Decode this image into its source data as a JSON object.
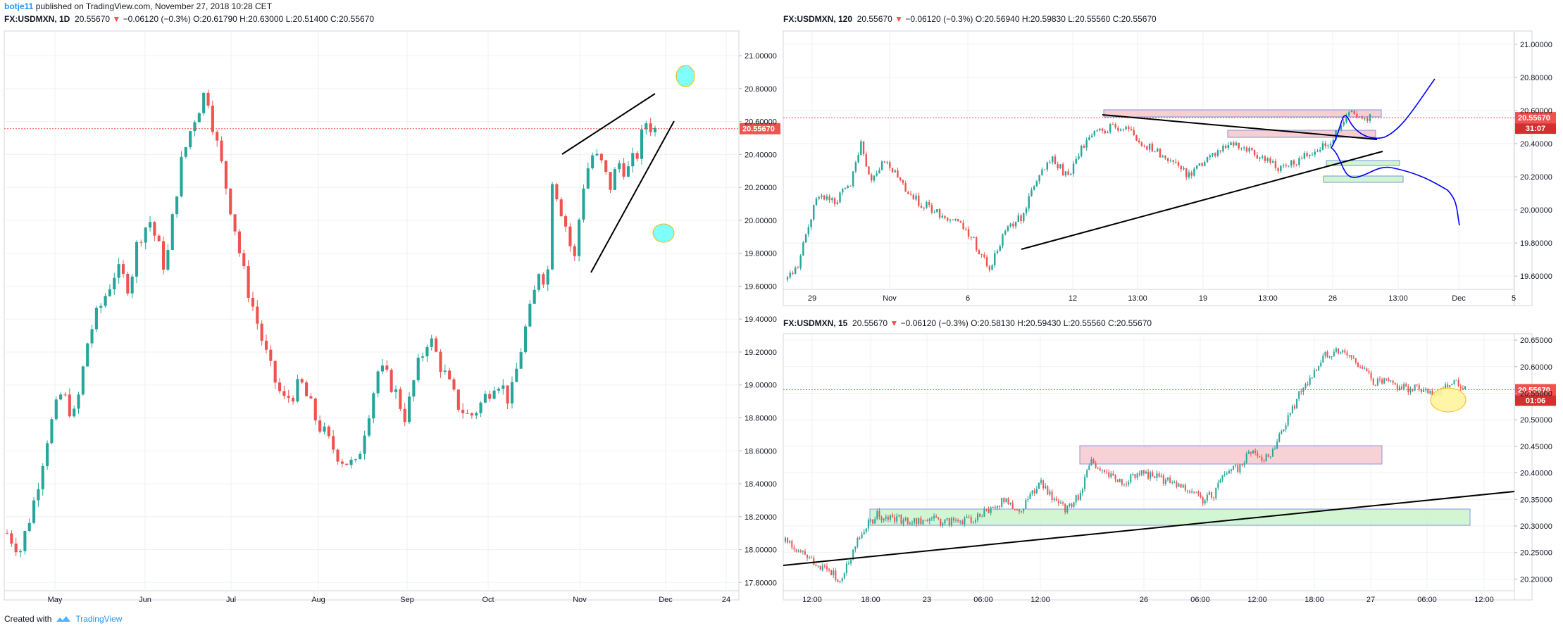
{
  "header": {
    "user": "botje11",
    "text": "published on TradingView.com, November 27, 2018 10:28 CET"
  },
  "footer": {
    "created_with": "Created with",
    "brand": "TradingView"
  },
  "colors": {
    "up": "#26a69a",
    "down": "#ef5350",
    "grid": "#eef1f5",
    "axis_text": "#131722",
    "price_line": "#ef5350",
    "pink_zone": "#f7c6cc",
    "green_zone": "#c8f5c8",
    "blue_path": "#0000ff",
    "cyan_ellipse": "#80ffff",
    "yellow_ellipse": "#fff59d"
  },
  "charts": [
    {
      "id": "daily",
      "symbol": "FX:USDMXN, 1D",
      "last": "20.55670",
      "change": "−0.06120 (−0.3%)",
      "o_label": "O:",
      "o": "20.61790",
      "h_label": "H:",
      "h": "20.63000",
      "l_label": "L:",
      "l": "20.51400",
      "c_label": "C:",
      "c": "20.55670",
      "price_tag": "20.55670",
      "y_ticks": [
        "21.00000",
        "20.80000",
        "20.60000",
        "20.40000",
        "20.20000",
        "20.00000",
        "19.80000",
        "19.60000",
        "19.40000",
        "19.20000",
        "19.00000",
        "18.80000",
        "18.60000",
        "18.40000",
        "18.20000",
        "18.00000",
        "17.80000"
      ],
      "x_ticks": [
        "May",
        "Jun",
        "Jul",
        "Aug",
        "Sep",
        "Oct",
        "Nov",
        "Dec",
        "24"
      ]
    },
    {
      "id": "h2",
      "symbol": "FX:USDMXN, 120",
      "last": "20.55670",
      "change": "−0.06120 (−0.3%)",
      "o_label": "O:",
      "o": "20.56940",
      "h_label": "H:",
      "h": "20.59830",
      "l_label": "L:",
      "l": "20.55560",
      "c_label": "C:",
      "c": "20.55670",
      "price_tag": "20.55670",
      "countdown": "31:07",
      "y_ticks": [
        "21.00000",
        "20.80000",
        "20.60000",
        "20.40000",
        "20.20000",
        "20.00000",
        "19.80000",
        "19.60000"
      ],
      "x_ticks": [
        "29",
        "Nov",
        "6",
        "12",
        "13:00",
        "19",
        "13:00",
        "26",
        "13:00",
        "Dec",
        "5"
      ]
    },
    {
      "id": "m15",
      "symbol": "FX:USDMXN, 15",
      "last": "20.55670",
      "change": "−0.06120 (−0.3%)",
      "o_label": "O:",
      "o": "20.58130",
      "h_label": "H:",
      "h": "20.59430",
      "l_label": "L:",
      "l": "20.55560",
      "c_label": "C:",
      "c": "20.55670",
      "price_tag": "20.55670",
      "countdown": "01:06",
      "y_ticks": [
        "20.65000",
        "20.60000",
        "20.55000",
        "20.50000",
        "20.45000",
        "20.40000",
        "20.35000",
        "20.30000",
        "20.25000",
        "20.20000"
      ],
      "x_ticks": [
        "12:00",
        "18:00",
        "23",
        "06:00",
        "12:00",
        "26",
        "06:00",
        "12:00",
        "18:00",
        "27",
        "06:00",
        "12:00"
      ]
    }
  ],
  "chart_data": [
    {
      "type": "candlestick",
      "title": "FX:USDMXN, 1D",
      "ylim": [
        17.75,
        21.15
      ],
      "x_categories": [
        "May",
        "Jun",
        "Jul",
        "Aug",
        "Sep",
        "Oct",
        "Nov",
        "Dec",
        "24"
      ],
      "series": [
        {
          "name": "FX:USDMXN",
          "close_path": [
            [
              0,
              18.1
            ],
            [
              6,
              18.0
            ],
            [
              12,
              18.3
            ],
            [
              18,
              18.7
            ],
            [
              24,
              18.95
            ],
            [
              30,
              18.8
            ],
            [
              36,
              19.3
            ],
            [
              42,
              19.5
            ],
            [
              48,
              19.7
            ],
            [
              54,
              19.6
            ],
            [
              58,
              19.9
            ],
            [
              63,
              20.0
            ],
            [
              70,
              19.7
            ],
            [
              76,
              20.3
            ],
            [
              82,
              20.6
            ],
            [
              88,
              20.8
            ],
            [
              92,
              20.5
            ],
            [
              96,
              20.25
            ],
            [
              100,
              20.0
            ],
            [
              104,
              19.7
            ],
            [
              110,
              19.4
            ],
            [
              116,
              19.1
            ],
            [
              122,
              18.9
            ],
            [
              130,
              19.0
            ],
            [
              136,
              18.8
            ],
            [
              142,
              18.65
            ],
            [
              148,
              18.55
            ],
            [
              154,
              18.5
            ],
            [
              158,
              18.75
            ],
            [
              164,
              19.1
            ],
            [
              170,
              19.0
            ],
            [
              176,
              18.8
            ],
            [
              180,
              19.05
            ],
            [
              186,
              19.3
            ],
            [
              192,
              19.1
            ],
            [
              198,
              18.9
            ],
            [
              204,
              18.8
            ],
            [
              210,
              18.9
            ],
            [
              216,
              19.05
            ],
            [
              222,
              18.9
            ],
            [
              228,
              19.3
            ],
            [
              232,
              19.5
            ],
            [
              236,
              19.8
            ],
            [
              238,
              19.4
            ],
            [
              240,
              20.3
            ],
            [
              244,
              20.1
            ],
            [
              248,
              19.9
            ],
            [
              250,
              19.7
            ],
            [
              254,
              20.2
            ],
            [
              258,
              20.4
            ],
            [
              262,
              20.35
            ],
            [
              266,
              20.2
            ],
            [
              270,
              20.35
            ],
            [
              274,
              20.3
            ],
            [
              278,
              20.4
            ],
            [
              282,
              20.6
            ],
            [
              286,
              20.55
            ]
          ]
        }
      ]
    },
    {
      "type": "candlestick",
      "title": "FX:USDMXN, 120",
      "ylim": [
        19.55,
        21.05
      ],
      "x_categories": [
        "29",
        "Nov",
        "6",
        "12",
        "13:00",
        "19",
        "13:00",
        "26",
        "13:00",
        "Dec",
        "5"
      ],
      "series": [
        {
          "name": "FX:USDMXN",
          "close_path": [
            [
              0,
              19.58
            ],
            [
              4,
              19.65
            ],
            [
              8,
              19.9
            ],
            [
              12,
              20.1
            ],
            [
              18,
              20.05
            ],
            [
              24,
              20.15
            ],
            [
              28,
              20.4
            ],
            [
              32,
              20.2
            ],
            [
              38,
              20.3
            ],
            [
              44,
              20.15
            ],
            [
              50,
              20.05
            ],
            [
              56,
              20.0
            ],
            [
              62,
              19.95
            ],
            [
              68,
              19.9
            ],
            [
              74,
              19.75
            ],
            [
              78,
              19.65
            ],
            [
              84,
              19.9
            ],
            [
              90,
              19.95
            ],
            [
              96,
              20.2
            ],
            [
              102,
              20.3
            ],
            [
              108,
              20.2
            ],
            [
              112,
              20.35
            ],
            [
              118,
              20.45
            ],
            [
              124,
              20.5
            ],
            [
              130,
              20.5
            ],
            [
              136,
              20.4
            ],
            [
              142,
              20.35
            ],
            [
              148,
              20.3
            ],
            [
              154,
              20.2
            ],
            [
              160,
              20.3
            ],
            [
              166,
              20.35
            ],
            [
              172,
              20.4
            ],
            [
              178,
              20.35
            ],
            [
              184,
              20.3
            ],
            [
              190,
              20.25
            ],
            [
              196,
              20.3
            ],
            [
              202,
              20.35
            ],
            [
              208,
              20.4
            ],
            [
              212,
              20.5
            ],
            [
              216,
              20.58
            ],
            [
              220,
              20.57
            ],
            [
              224,
              20.56
            ]
          ]
        }
      ]
    },
    {
      "type": "candlestick",
      "title": "FX:USDMXN, 15",
      "ylim": [
        20.18,
        20.66
      ],
      "x_categories": [
        "12:00",
        "18:00",
        "23",
        "06:00",
        "12:00",
        "26",
        "06:00",
        "12:00",
        "18:00",
        "27",
        "06:00",
        "12:00"
      ],
      "series": [
        {
          "name": "FX:USDMXN",
          "close_path": [
            [
              0,
              20.27
            ],
            [
              6,
              20.25
            ],
            [
              12,
              20.22
            ],
            [
              18,
              20.2
            ],
            [
              22,
              20.25
            ],
            [
              26,
              20.3
            ],
            [
              30,
              20.32
            ],
            [
              40,
              20.31
            ],
            [
              50,
              20.31
            ],
            [
              60,
              20.31
            ],
            [
              66,
              20.33
            ],
            [
              72,
              20.35
            ],
            [
              76,
              20.32
            ],
            [
              80,
              20.36
            ],
            [
              84,
              20.38
            ],
            [
              88,
              20.35
            ],
            [
              92,
              20.33
            ],
            [
              96,
              20.36
            ],
            [
              100,
              20.42
            ],
            [
              104,
              20.4
            ],
            [
              110,
              20.38
            ],
            [
              116,
              20.4
            ],
            [
              122,
              20.39
            ],
            [
              128,
              20.38
            ],
            [
              132,
              20.37
            ],
            [
              136,
              20.35
            ],
            [
              140,
              20.36
            ],
            [
              144,
              20.4
            ],
            [
              148,
              20.41
            ],
            [
              152,
              20.44
            ],
            [
              156,
              20.42
            ],
            [
              160,
              20.45
            ],
            [
              164,
              20.5
            ],
            [
              168,
              20.55
            ],
            [
              172,
              20.58
            ],
            [
              176,
              20.62
            ],
            [
              180,
              20.63
            ],
            [
              184,
              20.62
            ],
            [
              188,
              20.6
            ],
            [
              192,
              20.57
            ],
            [
              196,
              20.57
            ],
            [
              200,
              20.56
            ],
            [
              206,
              20.56
            ],
            [
              212,
              20.55
            ],
            [
              218,
              20.57
            ],
            [
              222,
              20.56
            ]
          ]
        }
      ]
    }
  ]
}
